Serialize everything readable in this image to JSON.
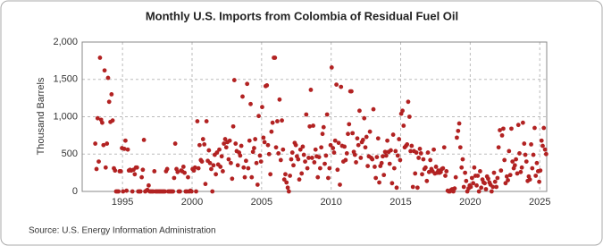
{
  "chart_data": {
    "type": "scatter",
    "title": "Monthly U.S. Imports from Colombia of Residual Fuel Oil",
    "y_label": "Thousand Barrels",
    "source": "Source: U.S. Energy Information Administration",
    "xlim": [
      1992.1,
      2025.5
    ],
    "ylim": [
      0,
      2000
    ],
    "xticks": [
      1995,
      2000,
      2005,
      2010,
      2015,
      2020,
      2025
    ],
    "yticks": [
      0,
      500,
      {
        "value": 1000,
        "label": "1,000"
      },
      {
        "value": 1500,
        "label": "1,500"
      },
      {
        "value": 2000,
        "label": "2,000"
      }
    ],
    "grid": true,
    "series": [
      {
        "name": "Imports",
        "color": "#b22222",
        "x": [
          1993.04,
          1993.13,
          1993.21,
          1993.29,
          1993.38,
          1993.46,
          1993.54,
          1993.63,
          1993.71,
          1993.79,
          1993.88,
          1993.96,
          1994.04,
          1994.13,
          1994.21,
          1994.29,
          1994.38,
          1994.46,
          1994.54,
          1994.63,
          1994.71,
          1994.79,
          1994.88,
          1994.96,
          1995.04,
          1995.13,
          1995.21,
          1995.29,
          1995.38,
          1995.46,
          1995.54,
          1995.63,
          1995.71,
          1995.79,
          1995.88,
          1995.96,
          1996.04,
          1996.13,
          1996.21,
          1996.29,
          1996.38,
          1996.46,
          1996.54,
          1996.63,
          1996.71,
          1996.79,
          1996.88,
          1996.96,
          1997.04,
          1997.13,
          1997.21,
          1997.29,
          1997.38,
          1997.46,
          1997.54,
          1997.63,
          1997.71,
          1997.79,
          1997.88,
          1997.96,
          1998.04,
          1998.13,
          1998.21,
          1998.29,
          1998.38,
          1998.46,
          1998.54,
          1998.63,
          1998.71,
          1998.79,
          1998.88,
          1998.96,
          1999.04,
          1999.13,
          1999.21,
          1999.29,
          1999.38,
          1999.46,
          1999.54,
          1999.63,
          1999.71,
          1999.79,
          1999.88,
          1999.96,
          2000.04,
          2000.13,
          2000.21,
          2000.29,
          2000.38,
          2000.46,
          2000.54,
          2000.63,
          2000.71,
          2000.79,
          2000.88,
          2000.96,
          2001.04,
          2001.13,
          2001.21,
          2001.29,
          2001.38,
          2001.46,
          2001.54,
          2001.63,
          2001.71,
          2001.79,
          2001.88,
          2001.96,
          2002.04,
          2002.13,
          2002.21,
          2002.29,
          2002.38,
          2002.46,
          2002.54,
          2002.63,
          2002.71,
          2002.79,
          2002.88,
          2002.96,
          2003.04,
          2003.13,
          2003.21,
          2003.29,
          2003.38,
          2003.46,
          2003.54,
          2003.63,
          2003.71,
          2003.79,
          2003.88,
          2003.96,
          2004.04,
          2004.13,
          2004.21,
          2004.29,
          2004.38,
          2004.46,
          2004.54,
          2004.63,
          2004.71,
          2004.79,
          2004.88,
          2004.96,
          2005.04,
          2005.13,
          2005.21,
          2005.29,
          2005.38,
          2005.46,
          2005.54,
          2005.63,
          2005.71,
          2005.79,
          2005.88,
          2005.96,
          2006.04,
          2006.13,
          2006.21,
          2006.29,
          2006.38,
          2006.46,
          2006.54,
          2006.63,
          2006.71,
          2006.79,
          2006.88,
          2006.96,
          2007.04,
          2007.13,
          2007.21,
          2007.29,
          2007.38,
          2007.46,
          2007.54,
          2007.63,
          2007.71,
          2007.79,
          2007.88,
          2007.96,
          2008.04,
          2008.13,
          2008.21,
          2008.29,
          2008.38,
          2008.46,
          2008.54,
          2008.63,
          2008.71,
          2008.79,
          2008.88,
          2008.96,
          2009.04,
          2009.13,
          2009.21,
          2009.29,
          2009.38,
          2009.46,
          2009.54,
          2009.63,
          2009.71,
          2009.79,
          2009.88,
          2009.96,
          2010.04,
          2010.13,
          2010.21,
          2010.29,
          2010.38,
          2010.46,
          2010.54,
          2010.63,
          2010.71,
          2010.79,
          2010.88,
          2010.96,
          2011.04,
          2011.13,
          2011.21,
          2011.29,
          2011.38,
          2011.46,
          2011.54,
          2011.63,
          2011.71,
          2011.79,
          2011.88,
          2011.96,
          2012.04,
          2012.13,
          2012.21,
          2012.29,
          2012.38,
          2012.46,
          2012.54,
          2012.63,
          2012.71,
          2012.79,
          2012.88,
          2012.96,
          2013.04,
          2013.13,
          2013.21,
          2013.29,
          2013.38,
          2013.46,
          2013.54,
          2013.63,
          2013.71,
          2013.79,
          2013.88,
          2013.96,
          2014.04,
          2014.13,
          2014.21,
          2014.29,
          2014.38,
          2014.46,
          2014.54,
          2014.63,
          2014.71,
          2014.79,
          2014.88,
          2014.96,
          2015.04,
          2015.13,
          2015.21,
          2015.29,
          2015.38,
          2015.46,
          2015.54,
          2015.63,
          2015.71,
          2015.79,
          2015.88,
          2015.96,
          2016.04,
          2016.13,
          2016.21,
          2016.29,
          2016.38,
          2016.46,
          2016.54,
          2016.63,
          2016.71,
          2016.79,
          2016.88,
          2016.96,
          2017.04,
          2017.13,
          2017.21,
          2017.29,
          2017.38,
          2017.46,
          2017.54,
          2017.63,
          2017.71,
          2017.79,
          2017.88,
          2017.96,
          2018.04,
          2018.13,
          2018.21,
          2018.29,
          2018.38,
          2018.46,
          2018.54,
          2018.63,
          2018.71,
          2018.79,
          2018.88,
          2018.96,
          2019.04,
          2019.13,
          2019.21,
          2019.29,
          2019.38,
          2019.46,
          2019.54,
          2019.63,
          2019.71,
          2019.79,
          2019.88,
          2019.96,
          2020.04,
          2020.13,
          2020.21,
          2020.29,
          2020.38,
          2020.46,
          2020.54,
          2020.63,
          2020.71,
          2020.79,
          2020.88,
          2020.96,
          2021.04,
          2021.13,
          2021.21,
          2021.29,
          2021.38,
          2021.46,
          2021.54,
          2021.63,
          2021.71,
          2021.79,
          2021.88,
          2021.96,
          2022.04,
          2022.13,
          2022.21,
          2022.29,
          2022.38,
          2022.46,
          2022.54,
          2022.63,
          2022.71,
          2022.79,
          2022.88,
          2022.96,
          2023.04,
          2023.13,
          2023.21,
          2023.29,
          2023.38,
          2023.46,
          2023.54,
          2023.63,
          2023.71,
          2023.79,
          2023.88,
          2023.96,
          2024.04,
          2024.13,
          2024.21,
          2024.29,
          2024.38,
          2024.46,
          2024.54,
          2024.63,
          2024.71,
          2024.79,
          2024.88,
          2024.96,
          2025.04,
          2025.13,
          2025.21,
          2025.29,
          2025.38,
          2025.46
        ],
        "values": [
          640,
          300,
          980,
          400,
          1790,
          960,
          920,
          620,
          1620,
          320,
          640,
          1520,
          1200,
          930,
          1300,
          950,
          310,
          280,
          0,
          0,
          0,
          270,
          270,
          580,
          0,
          570,
          680,
          10,
          560,
          280,
          290,
          280,
          0,
          290,
          230,
          320,
          320,
          0,
          0,
          0,
          190,
          290,
          690,
          0,
          10,
          20,
          80,
          0,
          0,
          0,
          0,
          270,
          0,
          0,
          0,
          0,
          0,
          0,
          0,
          0,
          0,
          270,
          300,
          0,
          0,
          0,
          0,
          0,
          180,
          640,
          300,
          260,
          0,
          0,
          280,
          270,
          330,
          250,
          0,
          0,
          190,
          0,
          10,
          0,
          300,
          280,
          320,
          0,
          940,
          310,
          620,
          420,
          400,
          700,
          630,
          100,
          940,
          410,
          550,
          380,
          300,
          0,
          350,
          490,
          230,
          520,
          360,
          560,
          330,
          470,
          270,
          640,
          700,
          590,
          660,
          430,
          680,
          380,
          170,
          870,
          1490,
          640,
          540,
          350,
          520,
          480,
          610,
          1270,
          320,
          190,
          410,
          1440,
          310,
          680,
          1170,
          190,
          530,
          580,
          700,
          380,
          90,
          1010,
          480,
          400,
          1130,
          720,
          660,
          1410,
          1420,
          620,
          500,
          230,
          800,
          920,
          1790,
          1790,
          590,
          940,
          510,
          1230,
          420,
          950,
          560,
          160,
          230,
          120,
          50,
          0,
          210,
          430,
          520,
          350,
          650,
          620,
          470,
          430,
          160,
          560,
          240,
          600,
          490,
          400,
          1030,
          310,
          450,
          870,
          1360,
          450,
          880,
          390,
          560,
          470,
          190,
          460,
          310,
          590,
          770,
          860,
          370,
          480,
          1030,
          180,
          310,
          620,
          1660,
          580,
          520,
          680,
          1430,
          290,
          650,
          90,
          1400,
          610,
          400,
          600,
          420,
          510,
          770,
          900,
          1340,
          1340,
          780,
          530,
          490,
          390,
          710,
          620,
          1080,
          450,
          660,
          690,
          980,
          590,
          730,
          340,
          470,
          800,
          450,
          430,
          1100,
          330,
          180,
          460,
          710,
          120,
          340,
          380,
          470,
          220,
          530,
          480,
          680,
          530,
          370,
          550,
          110,
          760,
          310,
          540,
          50,
          480,
          700,
          420,
          1040,
          1080,
          880,
          590,
          610,
          630,
          1200,
          1000,
          540,
          610,
          60,
          540,
          240,
          520,
          50,
          450,
          570,
          510,
          230,
          430,
          300,
          320,
          140,
          520,
          260,
          420,
          300,
          270,
          560,
          240,
          330,
          250,
          280,
          250,
          260,
          300,
          310,
          590,
          210,
          270,
          10,
          0,
          0,
          20,
          30,
          0,
          40,
          190,
          720,
          810,
          910,
          590,
          320,
          430,
          60,
          250,
          140,
          0,
          40,
          80,
          60,
          180,
          110,
          320,
          210,
          80,
          210,
          0,
          270,
          50,
          160,
          120,
          110,
          30,
          200,
          170,
          120,
          90,
          0,
          60,
          250,
          130,
          60,
          180,
          590,
          820,
          280,
          750,
          840,
          420,
          110,
          200,
          150,
          540,
          220,
          840,
          400,
          310,
          350,
          430,
          240,
          890,
          510,
          260,
          320,
          920,
          640,
          490,
          400,
          140,
          200,
          160,
          630,
          310,
          490,
          850,
          210,
          380,
          270,
          130,
          280,
          680,
          610,
          850,
          560,
          500
        ]
      }
    ]
  }
}
